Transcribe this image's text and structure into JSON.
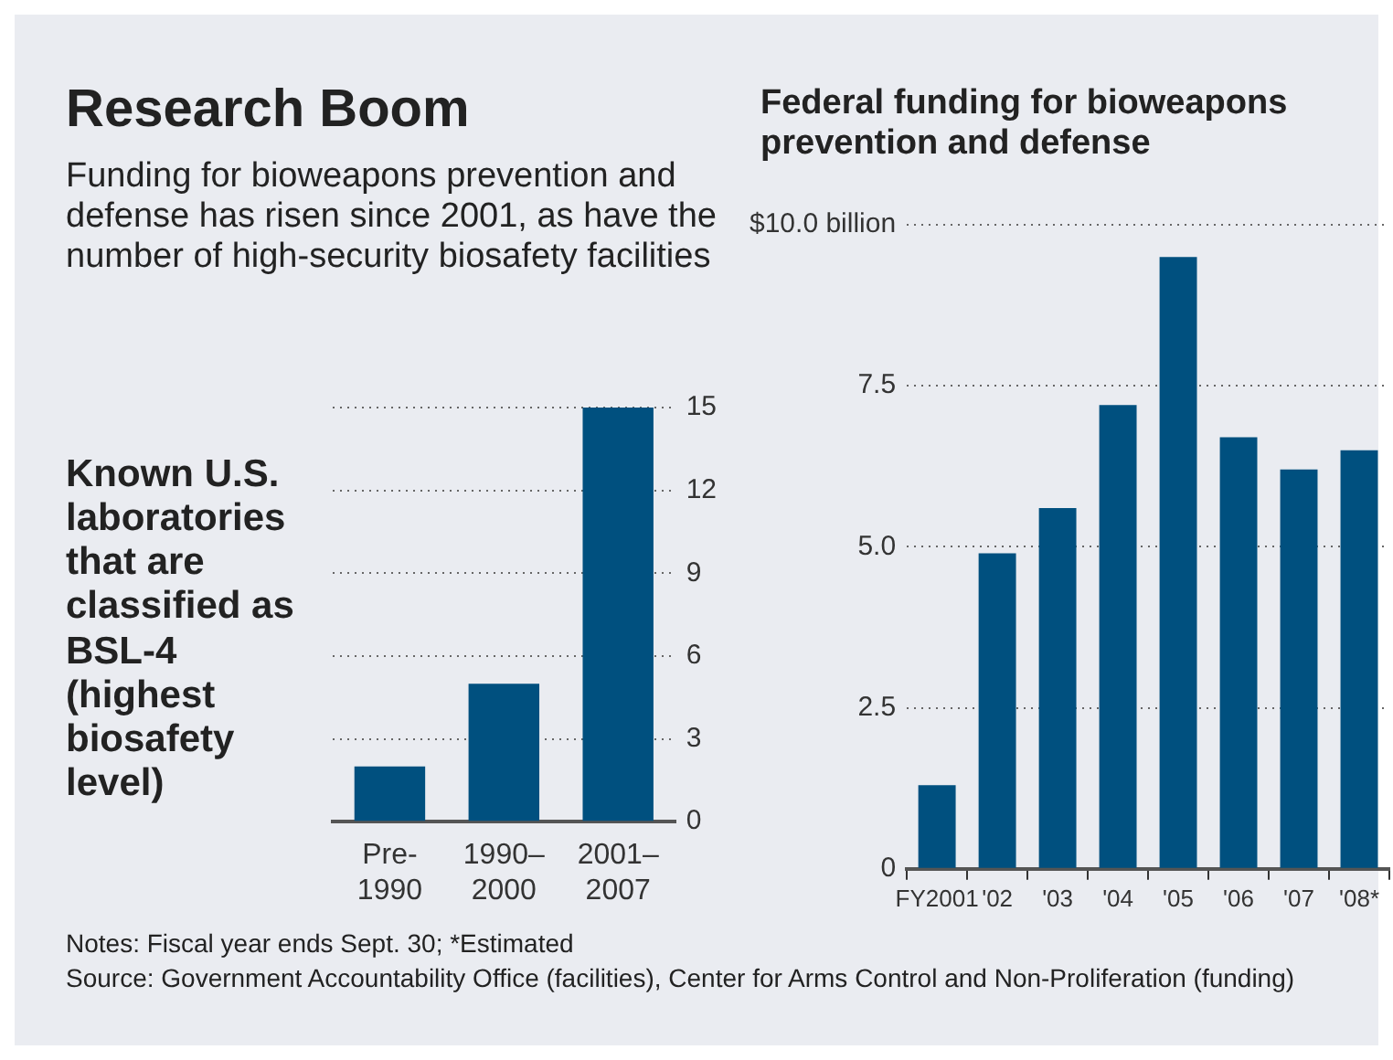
{
  "chart_data": [
    {
      "type": "bar",
      "title": "Research Boom",
      "subtitle": "Funding for bioweapons prevention and defense has risen since 2001, as have the number of high-security biosafety facilities",
      "annotations": [
        "Known U.S. laboratories that are classified as BSL-4 (highest biosafety level)"
      ],
      "categories": [
        "Pre-1990",
        "1990–2000",
        "2001–2007"
      ],
      "values": [
        2,
        5,
        15
      ],
      "color": "#00507f",
      "ylim": [
        0,
        15
      ],
      "yticks": [
        0,
        3,
        6,
        9,
        12,
        15
      ],
      "grid": "y",
      "legend": false
    },
    {
      "type": "bar",
      "title": "Federal funding for bioweapons prevention and defense",
      "annotations": [
        "Notes: Fiscal year ends Sept. 30; *Estimated",
        "Source: Government Accountability Office (facilities), Center for Arms Control and Non-Proliferation (funding)"
      ],
      "categories": [
        "FY2001",
        "'02",
        "'03",
        "'04",
        "'05",
        "'06",
        "'07",
        "'08*"
      ],
      "values": [
        1.3,
        4.9,
        5.6,
        7.2,
        9.5,
        6.7,
        6.2,
        6.5
      ],
      "color": "#00507f",
      "ylim": [
        0,
        10
      ],
      "yticks": [
        0,
        2.5,
        {
          "value": 5,
          "label": "5.0"
        },
        7.5,
        {
          "value": 10,
          "label": "$10.0 billion"
        }
      ],
      "grid": "y",
      "legend": false
    }
  ]
}
